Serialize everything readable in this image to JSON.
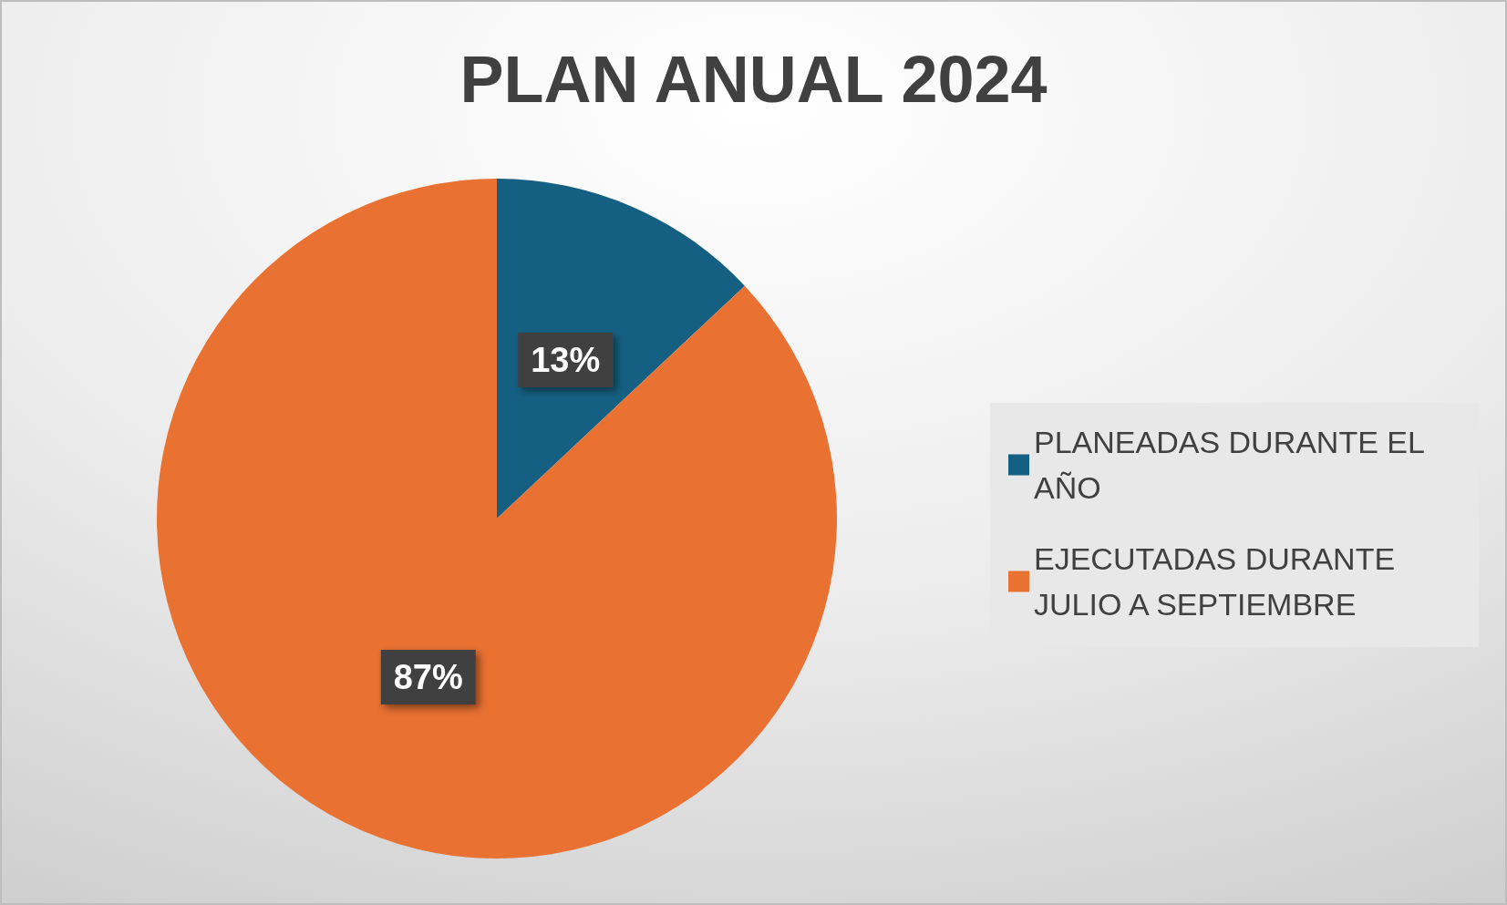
{
  "chart_data": {
    "type": "pie",
    "title": "PLAN ANUAL 2024",
    "categories": [
      "PLANEADAS DURANTE EL AÑO",
      "EJECUTADAS DURANTE JULIO A SEPTIEMBRE"
    ],
    "values": [
      13,
      87
    ],
    "colors": [
      "#156082",
      "#e97132"
    ],
    "value_labels": [
      "13%",
      "87%"
    ],
    "legend": "right"
  }
}
